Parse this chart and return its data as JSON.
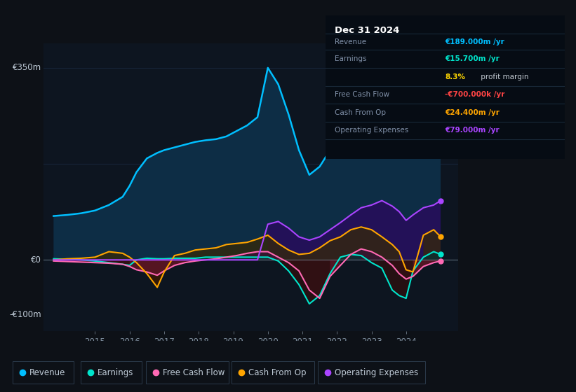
{
  "bg_color": "#0d1117",
  "plot_bg_color": "#0d1520",
  "ylabel_top": "€350m",
  "ylabel_zero": "€0",
  "ylabel_bottom": "-€100m",
  "ylim": [
    -130,
    395
  ],
  "xlim_start": 2013.5,
  "xlim_end": 2025.5,
  "xticks": [
    2015,
    2016,
    2017,
    2018,
    2019,
    2020,
    2021,
    2022,
    2023,
    2024
  ],
  "years": [
    2013.8,
    2014.2,
    2014.6,
    2015.0,
    2015.4,
    2015.8,
    2016.0,
    2016.2,
    2016.5,
    2016.8,
    2017.0,
    2017.3,
    2017.6,
    2017.9,
    2018.2,
    2018.5,
    2018.8,
    2019.1,
    2019.4,
    2019.7,
    2020.0,
    2020.3,
    2020.6,
    2020.9,
    2021.2,
    2021.5,
    2021.8,
    2022.1,
    2022.4,
    2022.7,
    2023.0,
    2023.3,
    2023.6,
    2023.8,
    2024.0,
    2024.2,
    2024.5,
    2024.8,
    2025.0
  ],
  "revenue": [
    80,
    82,
    85,
    90,
    100,
    115,
    135,
    160,
    185,
    195,
    200,
    205,
    210,
    215,
    218,
    220,
    225,
    235,
    245,
    260,
    350,
    320,
    265,
    200,
    155,
    170,
    200,
    230,
    255,
    270,
    280,
    285,
    250,
    225,
    195,
    245,
    275,
    300,
    340
  ],
  "earnings": [
    2,
    1,
    0,
    -2,
    -5,
    -8,
    -10,
    0,
    3,
    2,
    2,
    3,
    3,
    3,
    5,
    5,
    5,
    5,
    5,
    5,
    5,
    -2,
    -20,
    -45,
    -80,
    -65,
    -25,
    5,
    10,
    8,
    -5,
    -15,
    -55,
    -65,
    -70,
    -20,
    5,
    15,
    10
  ],
  "free_cash_flow": [
    -2,
    -3,
    -4,
    -5,
    -6,
    -8,
    -12,
    -18,
    -22,
    -28,
    -20,
    -10,
    -5,
    -2,
    0,
    2,
    5,
    8,
    12,
    15,
    15,
    5,
    -5,
    -20,
    -55,
    -70,
    -30,
    -10,
    10,
    20,
    15,
    5,
    -10,
    -25,
    -35,
    -30,
    -12,
    -5,
    -2
  ],
  "cash_from_op": [
    0,
    2,
    3,
    5,
    15,
    12,
    5,
    -5,
    -25,
    -50,
    -22,
    8,
    12,
    18,
    20,
    22,
    28,
    30,
    32,
    38,
    45,
    30,
    18,
    10,
    12,
    22,
    35,
    42,
    55,
    60,
    55,
    42,
    28,
    15,
    -18,
    -22,
    45,
    55,
    42
  ],
  "op_expenses": [
    0,
    0,
    0,
    0,
    0,
    0,
    0,
    0,
    0,
    0,
    0,
    0,
    0,
    0,
    0,
    0,
    0,
    0,
    0,
    0,
    65,
    70,
    58,
    42,
    36,
    42,
    55,
    68,
    82,
    95,
    100,
    108,
    98,
    88,
    72,
    82,
    95,
    100,
    108
  ],
  "revenue_color": "#00bfff",
  "revenue_fill": "#0d2d45",
  "earnings_color": "#00e5cc",
  "earnings_fill_pos": "#003535",
  "earnings_fill_neg": "#2a1010",
  "free_cash_flow_color": "#ff69b4",
  "free_cash_flow_fill_pos": "#351535",
  "free_cash_flow_fill_neg": "#5a1525",
  "cash_from_op_color": "#ffa500",
  "cash_from_op_fill_pos": "#352808",
  "cash_from_op_fill_neg": "#3a1800",
  "op_expenses_color": "#aa44ff",
  "op_expenses_fill": "#25105a",
  "legend_items": [
    {
      "label": "Revenue",
      "color": "#00bfff"
    },
    {
      "label": "Earnings",
      "color": "#00e5cc"
    },
    {
      "label": "Free Cash Flow",
      "color": "#ff69b4"
    },
    {
      "label": "Cash From Op",
      "color": "#ffa500"
    },
    {
      "label": "Operating Expenses",
      "color": "#aa44ff"
    }
  ],
  "grid_color": "#1a2a40",
  "zero_line_color": "#8090a0",
  "text_color": "#8090a0",
  "title_text_color": "#c0ccd8",
  "infobox": {
    "date": "Dec 31 2024",
    "rows": [
      {
        "label": "Revenue",
        "value": "€189.000m",
        "value_color": "#00bfff"
      },
      {
        "label": "Earnings",
        "value": "€15.700m",
        "value_color": "#00e5cc"
      },
      {
        "label": "",
        "value": "8.3%",
        "value_color": "#ffd700",
        "suffix": " profit margin",
        "suffix_color": "#c0c8d0"
      },
      {
        "label": "Free Cash Flow",
        "value": "-€700.000k",
        "value_color": "#ff4444"
      },
      {
        "label": "Cash From Op",
        "value": "€24.400m",
        "value_color": "#ffa500"
      },
      {
        "label": "Operating Expenses",
        "value": "€79.000m",
        "value_color": "#aa44ff"
      }
    ]
  }
}
